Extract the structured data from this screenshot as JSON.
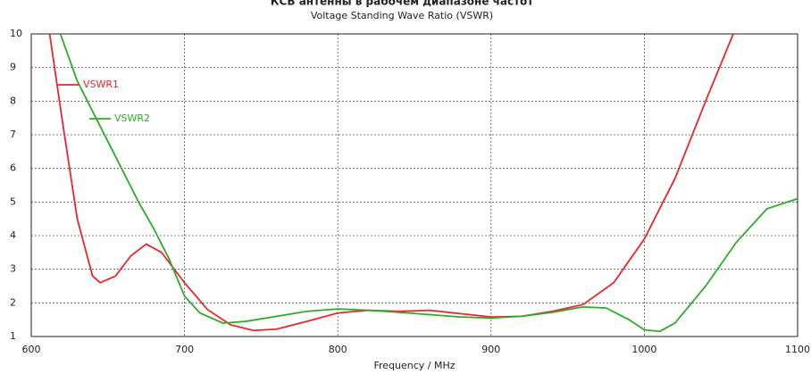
{
  "chart_data": {
    "type": "line",
    "title": "КСВ антенны в рабочем диапазоне частот",
    "subtitle": "Voltage Standing Wave Ratio (VSWR)",
    "x_label": "Frequency / MHz",
    "xlim": [
      600,
      1100
    ],
    "xticks": [
      600,
      700,
      800,
      900,
      1000,
      1100
    ],
    "ylim": [
      1,
      10
    ],
    "yticks": [
      1,
      2,
      3,
      4,
      5,
      6,
      7,
      8,
      9,
      10
    ],
    "grid": true,
    "legend": "upper left",
    "series": [
      {
        "name": "VSWR1",
        "color": "#e8262b",
        "x": [
          612,
          620,
          630,
          640,
          645,
          655,
          665,
          675,
          685,
          700,
          715,
          730,
          745,
          760,
          780,
          800,
          820,
          840,
          860,
          880,
          900,
          920,
          940,
          960,
          980,
          1000,
          1020,
          1040,
          1058
        ],
        "values": [
          10,
          7.5,
          4.5,
          2.8,
          2.6,
          2.8,
          3.4,
          3.75,
          3.5,
          2.6,
          1.8,
          1.35,
          1.18,
          1.22,
          1.45,
          1.7,
          1.78,
          1.75,
          1.78,
          1.68,
          1.58,
          1.6,
          1.75,
          1.95,
          2.6,
          3.9,
          5.7,
          8,
          10
        ]
      },
      {
        "name": "VSWR2",
        "color": "#2eaa2a",
        "x": [
          619,
          630,
          650,
          670,
          680,
          690,
          700,
          710,
          725,
          740,
          760,
          780,
          800,
          820,
          840,
          860,
          880,
          900,
          920,
          940,
          960,
          975,
          990,
          1000,
          1010,
          1020,
          1040,
          1060,
          1080,
          1100
        ],
        "values": [
          10,
          8.6,
          6.8,
          5.0,
          4.2,
          3.3,
          2.2,
          1.7,
          1.4,
          1.45,
          1.6,
          1.75,
          1.82,
          1.78,
          1.72,
          1.65,
          1.58,
          1.55,
          1.6,
          1.72,
          1.88,
          1.85,
          1.5,
          1.2,
          1.15,
          1.4,
          2.5,
          3.8,
          4.8,
          5.1
        ]
      }
    ]
  }
}
